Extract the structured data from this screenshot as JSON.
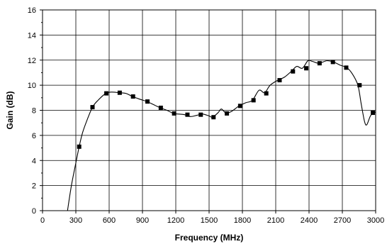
{
  "chart_data": {
    "type": "line",
    "xlabel": "Frequency (MHz)",
    "ylabel": "Gain (dB)",
    "xlim": [
      0,
      3000
    ],
    "ylim": [
      0,
      16
    ],
    "x_ticks": [
      0,
      300,
      600,
      900,
      1200,
      1500,
      1800,
      2100,
      2400,
      2700,
      3000
    ],
    "x_tick_labels": [
      "0",
      "300",
      "600",
      "900",
      "1200",
      "1500",
      "1800",
      "2100",
      "2400",
      "2700",
      "3000"
    ],
    "y_ticks": [
      0,
      2,
      4,
      6,
      8,
      10,
      12,
      14,
      16
    ],
    "y_tick_labels": [
      "0",
      "2",
      "4",
      "6",
      "8",
      "10",
      "12",
      "14",
      "16"
    ],
    "grid": true,
    "legend": "none",
    "series": [
      {
        "curve": [
          [
            225,
            0
          ],
          [
            260,
            2
          ],
          [
            300,
            3.8
          ],
          [
            330,
            5.1
          ],
          [
            360,
            6.2
          ],
          [
            400,
            7.2
          ],
          [
            450,
            8.25
          ],
          [
            500,
            8.8
          ],
          [
            570,
            9.35
          ],
          [
            620,
            9.45
          ],
          [
            690,
            9.4
          ],
          [
            750,
            9.35
          ],
          [
            810,
            9.1
          ],
          [
            870,
            8.9
          ],
          [
            940,
            8.7
          ],
          [
            1000,
            8.45
          ],
          [
            1060,
            8.2
          ],
          [
            1120,
            8.0
          ],
          [
            1180,
            7.75
          ],
          [
            1230,
            7.7
          ],
          [
            1280,
            7.65
          ],
          [
            1330,
            7.5
          ],
          [
            1390,
            7.6
          ],
          [
            1440,
            7.7
          ],
          [
            1500,
            7.55
          ],
          [
            1530,
            7.45
          ],
          [
            1580,
            7.8
          ],
          [
            1610,
            8.1
          ],
          [
            1650,
            7.8
          ],
          [
            1700,
            7.9
          ],
          [
            1770,
            8.35
          ],
          [
            1830,
            8.6
          ],
          [
            1890,
            8.8
          ],
          [
            1950,
            9.6
          ],
          [
            2000,
            9.4
          ],
          [
            2050,
            10.0
          ],
          [
            2120,
            10.4
          ],
          [
            2180,
            10.65
          ],
          [
            2240,
            11.1
          ],
          [
            2290,
            11.5
          ],
          [
            2340,
            11.35
          ],
          [
            2390,
            11.95
          ],
          [
            2430,
            11.9
          ],
          [
            2490,
            11.75
          ],
          [
            2560,
            11.95
          ],
          [
            2620,
            11.85
          ],
          [
            2680,
            11.6
          ],
          [
            2740,
            11.4
          ],
          [
            2790,
            10.9
          ],
          [
            2840,
            10.0
          ],
          [
            2870,
            8.5
          ],
          [
            2900,
            7.1
          ],
          [
            2920,
            6.85
          ],
          [
            2950,
            7.5
          ],
          [
            2975,
            7.8
          ],
          [
            3000,
            7.85
          ]
        ],
        "markers": [
          [
            330,
            5.1
          ],
          [
            450,
            8.25
          ],
          [
            575,
            9.35
          ],
          [
            695,
            9.4
          ],
          [
            815,
            9.1
          ],
          [
            945,
            8.7
          ],
          [
            1065,
            8.2
          ],
          [
            1185,
            7.75
          ],
          [
            1305,
            7.65
          ],
          [
            1425,
            7.65
          ],
          [
            1540,
            7.45
          ],
          [
            1660,
            7.75
          ],
          [
            1780,
            8.35
          ],
          [
            1900,
            8.8
          ],
          [
            2015,
            9.35
          ],
          [
            2135,
            10.4
          ],
          [
            2255,
            11.1
          ],
          [
            2375,
            11.35
          ],
          [
            2495,
            11.75
          ],
          [
            2615,
            11.85
          ],
          [
            2735,
            11.4
          ],
          [
            2855,
            10.0
          ],
          [
            2975,
            7.8
          ]
        ]
      }
    ]
  }
}
